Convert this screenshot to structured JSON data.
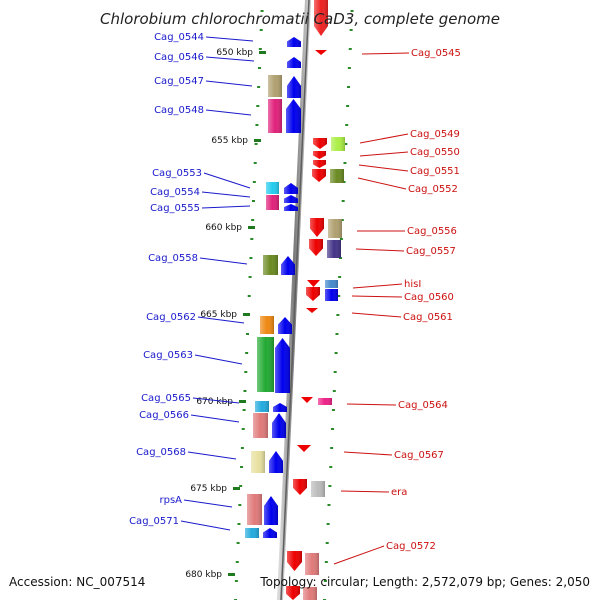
{
  "title": "Chlorobium chlorochromatii CaD3, complete genome",
  "footer": {
    "accession": "Accession: NC_007514",
    "topology": "Topology: circular; Length: 2,572,079 bp; Genes: 2,050"
  },
  "kbp_ticks": [
    {
      "label": "650 kbp"
    },
    {
      "label": "655 kbp"
    },
    {
      "label": "660 kbp"
    },
    {
      "label": "665 kbp"
    },
    {
      "label": "670 kbp"
    },
    {
      "label": "675 kbp"
    },
    {
      "label": "680 kbp"
    }
  ],
  "left_labels": [
    "Cag_0544",
    "Cag_0546",
    "Cag_0547",
    "Cag_0548",
    "Cag_0553",
    "Cag_0554",
    "Cag_0555",
    "Cag_0558",
    "Cag_0562",
    "Cag_0563",
    "Cag_0565",
    "Cag_0566",
    "Cag_0568",
    "rpsA",
    "Cag_0571"
  ],
  "right_labels": [
    "Cag_0545",
    "Cag_0549",
    "Cag_0550",
    "Cag_0551",
    "Cag_0552",
    "Cag_0556",
    "Cag_0557",
    "hisI",
    "Cag_0560",
    "Cag_0561",
    "Cag_0564",
    "Cag_0567",
    "era",
    "Cag_0572"
  ],
  "colors": {
    "forward_strand": "#0000ee",
    "reverse_strand": "#ee0000",
    "left_label": "#1a1acc",
    "right_label": "#cc1111",
    "axis": "#8a8a8a"
  }
}
